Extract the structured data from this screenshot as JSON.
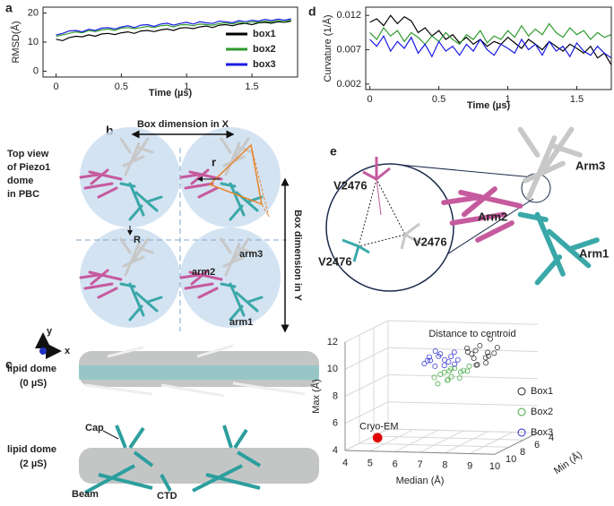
{
  "chart_data": [
    {
      "type": "line",
      "x": [
        0,
        0.05,
        0.1,
        0.15,
        0.2,
        0.25,
        0.3,
        0.35,
        0.4,
        0.45,
        0.5,
        0.55,
        0.6,
        0.65,
        0.7,
        0.75,
        0.8,
        0.85,
        0.9,
        0.95,
        1,
        1.05,
        1.1,
        1.15,
        1.2,
        1.25,
        1.3,
        1.35,
        1.4,
        1.45,
        1.5,
        1.55,
        1.6,
        1.65,
        1.7,
        1.75,
        1.8
      ],
      "xlim": [
        -0.1,
        1.85
      ],
      "xticks": [
        0,
        0.5,
        1,
        1.5
      ],
      "ylim": [
        -2,
        22
      ],
      "yticks": [
        0,
        10,
        20
      ],
      "xlabel": "Time (µs)",
      "ylabel": "RMSD(Å)",
      "legend": "lower right",
      "series": [
        {
          "name": "box1",
          "color": "#000000",
          "values": [
            11,
            10.5,
            11.5,
            12,
            11.8,
            12.5,
            12,
            12.8,
            13,
            12.6,
            13.2,
            13.5,
            13,
            13.8,
            14,
            13.6,
            14.2,
            14.5,
            14,
            14.8,
            15,
            14.6,
            15.2,
            15.5,
            15,
            15.8,
            16,
            15.6,
            16.2,
            16.4,
            16,
            16.6,
            16.8,
            16.5,
            17,
            16.8,
            17.2
          ]
        },
        {
          "name": "box2",
          "color": "#2e9a2e",
          "values": [
            12,
            12.5,
            13,
            13.5,
            13.2,
            14,
            13.6,
            14.2,
            14.5,
            14,
            14.8,
            15,
            14.6,
            15,
            15.4,
            15,
            15.6,
            15.8,
            15.2,
            15.9,
            16,
            15.6,
            16.2,
            16,
            15.8,
            16.4,
            16.6,
            16.2,
            16.8,
            16.5,
            17,
            16.8,
            17.2,
            16.9,
            17.4,
            17,
            17.6
          ]
        },
        {
          "name": "box3",
          "color": "#1a1ae6",
          "values": [
            12.5,
            13,
            13.8,
            14,
            13.5,
            14.4,
            14,
            14.8,
            15,
            14.5,
            15.2,
            15.6,
            15,
            15.8,
            16,
            15.4,
            16.2,
            16.5,
            15.8,
            16.4,
            16.8,
            16.2,
            17,
            16.6,
            16.4,
            17.2,
            17,
            16.6,
            17.4,
            17,
            17.5,
            17.2,
            17.8,
            17.4,
            17.9,
            17.5,
            18
          ]
        }
      ]
    },
    {
      "type": "line",
      "x": [
        0,
        0.05,
        0.1,
        0.15,
        0.2,
        0.25,
        0.3,
        0.35,
        0.4,
        0.45,
        0.5,
        0.55,
        0.6,
        0.65,
        0.7,
        0.75,
        0.8,
        0.85,
        0.9,
        0.95,
        1,
        1.05,
        1.1,
        1.15,
        1.2,
        1.25,
        1.3,
        1.35,
        1.4,
        1.45,
        1.5,
        1.55,
        1.6,
        1.65,
        1.7,
        1.75
      ],
      "xlim": [
        -0.03,
        1.75
      ],
      "xticks": [
        0,
        0.5,
        1,
        1.5
      ],
      "ylim": [
        0.0012,
        0.0132
      ],
      "yticks": [
        0.002,
        0.007,
        0.012
      ],
      "xlabel": "Time (µs)",
      "ylabel": "Curvature (1/Å)",
      "series": [
        {
          "color": "#000000",
          "values": [
            0.011,
            0.0115,
            0.0105,
            0.012,
            0.0108,
            0.0118,
            0.0112,
            0.0095,
            0.0102,
            0.009,
            0.0098,
            0.0085,
            0.0092,
            0.008,
            0.0088,
            0.0078,
            0.0085,
            0.0075,
            0.0082,
            0.0078,
            0.0088,
            0.008,
            0.0072,
            0.0085,
            0.0078,
            0.007,
            0.0082,
            0.0075,
            0.0068,
            0.0078,
            0.0072,
            0.0065,
            0.0075,
            0.0058,
            0.0065,
            0.0048
          ]
        },
        {
          "color": "#2e9a2e",
          "values": [
            0.0095,
            0.0085,
            0.0102,
            0.009,
            0.0098,
            0.0082,
            0.0095,
            0.0088,
            0.0078,
            0.009,
            0.0082,
            0.0095,
            0.0085,
            0.0078,
            0.0092,
            0.0085,
            0.0098,
            0.008,
            0.009,
            0.0085,
            0.0098,
            0.0088,
            0.0105,
            0.009,
            0.01,
            0.0092,
            0.0108,
            0.0095,
            0.0088,
            0.0102,
            0.0092,
            0.0098,
            0.0085,
            0.0095,
            0.0088,
            0.0092
          ]
        },
        {
          "color": "#1a1ae6",
          "values": [
            0.0085,
            0.0075,
            0.009,
            0.0068,
            0.0082,
            0.0072,
            0.0088,
            0.0065,
            0.0078,
            0.006,
            0.0082,
            0.0068,
            0.0075,
            0.0062,
            0.0078,
            0.0068,
            0.0085,
            0.007,
            0.0062,
            0.0078,
            0.0072,
            0.0065,
            0.0085,
            0.007,
            0.0078,
            0.0062,
            0.0082,
            0.0068,
            0.0075,
            0.006,
            0.008,
            0.0068,
            0.0062,
            0.0075,
            0.0065,
            0.0058
          ]
        }
      ]
    },
    {
      "type": "scatter",
      "title": "Distance to centroid",
      "xlabel": "Median (Å)",
      "ylabel": "Max (Å)",
      "zlabel": "Min (Å)",
      "xlim": [
        4,
        10
      ],
      "xticks": [
        4,
        5,
        6,
        7,
        8,
        9,
        10
      ],
      "ylim": [
        4,
        12
      ],
      "yticks": [
        4,
        6,
        8,
        10,
        12
      ],
      "zlim": [
        4,
        10
      ],
      "zticks": [
        10,
        8,
        6,
        4
      ],
      "legend": "right",
      "series": [
        {
          "name": "Box1",
          "color": "#222222",
          "marker": "open",
          "x": [
            8.5,
            8.8,
            9,
            9.2,
            8.6,
            9.4,
            8.9,
            9.1,
            8.7,
            9.3,
            9.5,
            8.4,
            9,
            9.2,
            8.8
          ],
          "y": [
            10.8,
            11.2,
            10.5,
            11,
            11.5,
            10.9,
            10.2,
            11.8,
            10.6,
            10.4,
            11.3,
            11,
            11.6,
            10.7,
            10.1
          ],
          "z": [
            8,
            8.5,
            7.8,
            8.2,
            9,
            8,
            8.6,
            7.5,
            8.4,
            8.8,
            7.9,
            8.2,
            8.6,
            8.1,
            8.4
          ]
        },
        {
          "name": "Box2",
          "color": "#3aa83a",
          "marker": "open",
          "x": [
            7,
            7.3,
            7.6,
            7.9,
            8.2,
            7.5,
            7.8,
            8.4,
            7.2,
            8,
            7.7,
            8.1,
            7.4,
            8.3,
            7.6
          ],
          "y": [
            9,
            9.3,
            9.5,
            9.8,
            9.6,
            8.8,
            9.2,
            9.9,
            8.6,
            9.4,
            9.7,
            9.1,
            9.4,
            9.5,
            8.9
          ],
          "z": [
            8,
            8.2,
            8,
            8.3,
            8.1,
            7.9,
            8.4,
            8,
            8.2,
            7.8,
            8.1,
            8.3,
            8,
            7.9,
            8.2
          ]
        },
        {
          "name": "Box3",
          "color": "#2a2ad0",
          "marker": "open",
          "x": [
            6.6,
            6.9,
            7.2,
            7.5,
            7.8,
            7,
            7.3,
            7.6,
            6.8,
            7.9,
            7.1,
            7.4,
            7.7,
            6.7,
            8
          ],
          "y": [
            10,
            10.3,
            10.6,
            10.4,
            10.9,
            9.8,
            10.8,
            10.2,
            10.5,
            10.1,
            11,
            9.9,
            10.6,
            10.2,
            10.4
          ],
          "z": [
            8,
            8.2,
            8.1,
            8.3,
            8,
            7.9,
            8.2,
            8.1,
            8,
            8.3,
            8.2,
            8,
            8.1,
            7.9,
            8.2
          ]
        },
        {
          "name": "Cryo-EM",
          "color": "#e00000",
          "marker": "filled",
          "x": [
            5.3
          ],
          "y": [
            5
          ],
          "z": [
            10
          ]
        }
      ]
    }
  ],
  "figure": {
    "panel_labels": [
      "a",
      "b",
      "c",
      "d",
      "e"
    ],
    "b": {
      "top_view": [
        "Top view",
        "of Piezo1",
        "dome",
        "in PBC"
      ],
      "box_x": "Box dimension in X",
      "box_y": "Box dimension in Y",
      "r": "r",
      "R": "R",
      "arm1": "arm1",
      "arm2": "arm2",
      "arm3": "arm3",
      "axis_x": "x",
      "axis_y": "y"
    },
    "c": {
      "dome0": [
        "lipid dome",
        "(0 µS)"
      ],
      "dome2": [
        "lipid dome",
        "(2 µS)"
      ],
      "cap": "Cap",
      "beam": "Beam",
      "ctd": "CTD"
    },
    "e": {
      "v2476": [
        "V2476",
        "V2476",
        "V2476"
      ],
      "arm1": "Arm1",
      "arm2": "Arm2",
      "arm3": "Arm3"
    }
  }
}
